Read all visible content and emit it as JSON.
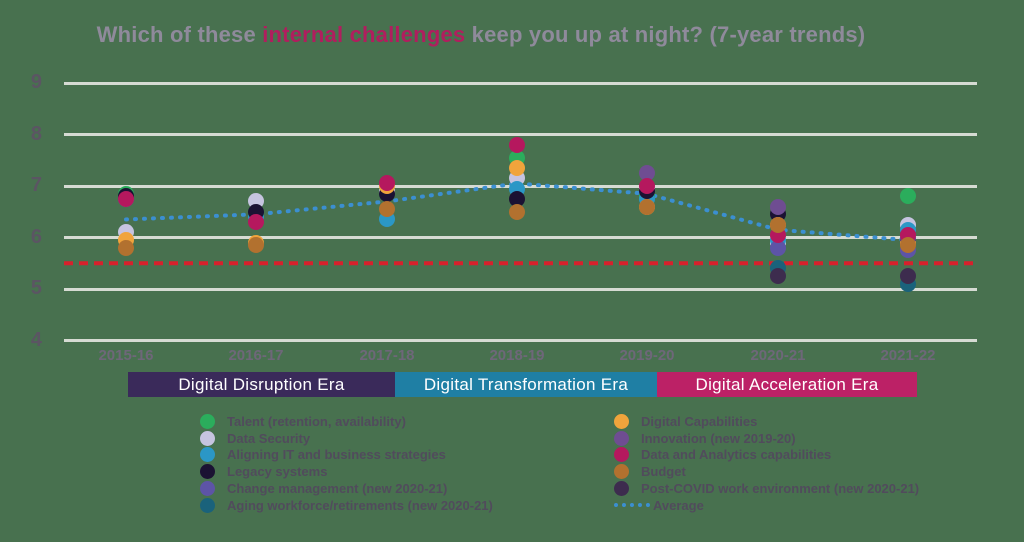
{
  "title": {
    "prefix": "Which of these ",
    "highlight": "internal challenges",
    "suffix": " keep you up at night? (7-year trends)"
  },
  "colors": {
    "background": "#48714F",
    "gridline": "#D6DBD3",
    "title_gray": "#8F8A9B",
    "title_accent": "#B01E5E",
    "axis_label": "#5B5563",
    "legend_text": "#514B5C"
  },
  "eras": [
    {
      "label": "Digital Disruption Era",
      "color": "#3A2A5A"
    },
    {
      "label": "Digital Transformation Era",
      "color": "#1F7FA4"
    },
    {
      "label": "Digital Acceleration Era",
      "color": "#BC2166"
    }
  ],
  "chart_data": {
    "type": "scatter",
    "title": "Which of these internal challenges keep you up at night? (7-year trends)",
    "x": [
      "2015-16",
      "2016-17",
      "2017-18",
      "2018-19",
      "2019-20",
      "2020-21",
      "2021-22"
    ],
    "ylim": [
      4,
      9
    ],
    "yticks": [
      9,
      8,
      7,
      6,
      5,
      4
    ],
    "grid": true,
    "legend_position": "bottom-two-columns",
    "series": [
      {
        "name": "Talent (retention, availability)",
        "color": "#2BAD5C",
        "values": [
          6.85,
          6.5,
          6.85,
          7.55,
          6.8,
          6.05,
          6.8
        ]
      },
      {
        "name": "Data Security",
        "color": "#C6C4E0",
        "values": [
          6.1,
          6.7,
          6.9,
          7.15,
          6.95,
          5.9,
          6.25
        ]
      },
      {
        "name": "Aligning IT and business strategies",
        "color": "#2B97C6",
        "values": [
          6.75,
          6.4,
          6.35,
          6.95,
          6.75,
          5.95,
          6.15
        ]
      },
      {
        "name": "Legacy systems",
        "color": "#1B1233",
        "values": [
          6.8,
          6.5,
          6.85,
          6.75,
          6.9,
          6.45,
          5.95
        ]
      },
      {
        "name": "Change management (new 2020-21)",
        "color": "#5D54A6",
        "values": [
          null,
          null,
          null,
          null,
          null,
          5.8,
          5.75
        ]
      },
      {
        "name": "Aging workforce/retirements (new 2020-21)",
        "color": "#1A627B",
        "values": [
          null,
          null,
          null,
          null,
          null,
          5.4,
          5.1
        ]
      },
      {
        "name": "Digital Capabilities",
        "color": "#F0A43C",
        "values": [
          5.95,
          5.9,
          7.0,
          7.35,
          6.6,
          6.25,
          5.9
        ]
      },
      {
        "name": "Innovation (new 2019-20)",
        "color": "#6F4D92",
        "values": [
          null,
          null,
          null,
          null,
          7.25,
          6.6,
          6.0
        ]
      },
      {
        "name": "Data and Analytics capabilities",
        "color": "#B5185E",
        "values": [
          6.75,
          6.3,
          7.05,
          7.8,
          7.0,
          6.05,
          6.05
        ]
      },
      {
        "name": "Budget",
        "color": "#B2712F",
        "values": [
          5.8,
          5.85,
          6.55,
          6.5,
          6.6,
          6.25,
          5.85
        ]
      },
      {
        "name": "Post-COVID work environment (new 2020-21)",
        "color": "#3D2C4E",
        "values": [
          null,
          null,
          null,
          null,
          null,
          5.25,
          5.25
        ]
      }
    ],
    "average": {
      "name": "Average",
      "color": "#3B8FD1",
      "style": "dotted",
      "values": [
        6.35,
        6.45,
        6.7,
        7.05,
        6.85,
        6.15,
        5.95
      ]
    },
    "reference_line": {
      "value": 5.5,
      "color": "#D8202C",
      "style": "dashed"
    }
  }
}
